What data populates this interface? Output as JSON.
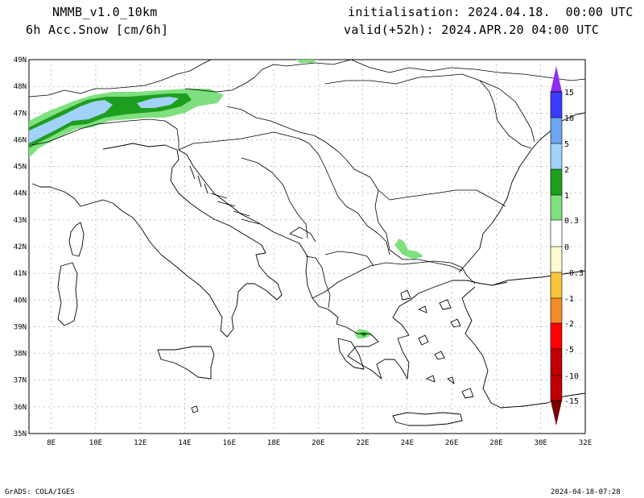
{
  "header": {
    "model": "NMMB_v1.0_10km",
    "field": "6h Acc.Snow [cm/6h]",
    "init": "initialisation: 2024.04.18.  00:00 UTC",
    "valid": "valid(+52h): 2024.APR.20 04:00 UTC"
  },
  "map": {
    "lon_range": [
      7,
      32
    ],
    "lat_range": [
      35,
      49
    ],
    "lat_labels": [
      "49N",
      "48N",
      "47N",
      "46N",
      "45N",
      "44N",
      "43N",
      "42N",
      "41N",
      "40N",
      "39N",
      "38N",
      "37N",
      "36N",
      "35N"
    ],
    "lon_labels": [
      "8E",
      "10E",
      "12E",
      "14E",
      "16E",
      "18E",
      "20E",
      "22E",
      "24E",
      "26E",
      "28E",
      "30E",
      "32E"
    ]
  },
  "legend": {
    "labels": [
      "15",
      "10",
      "5",
      "2",
      "1",
      "0.3",
      "0",
      "-0.3",
      "-1",
      "-2",
      "-5",
      "-10",
      "-15"
    ],
    "colors": [
      "#8c2df0",
      "#3c3cff",
      "#6ca6f0",
      "#a2d2fa",
      "#1e9e1e",
      "#7fe07f",
      "#ffffff",
      "#fffad0",
      "#f7c53c",
      "#f28c28",
      "#ff0000",
      "#c00000",
      "#7a0000"
    ]
  },
  "footer": {
    "left": "GrADS: COLA/IGES",
    "right": "2024-04-18-07:28"
  }
}
